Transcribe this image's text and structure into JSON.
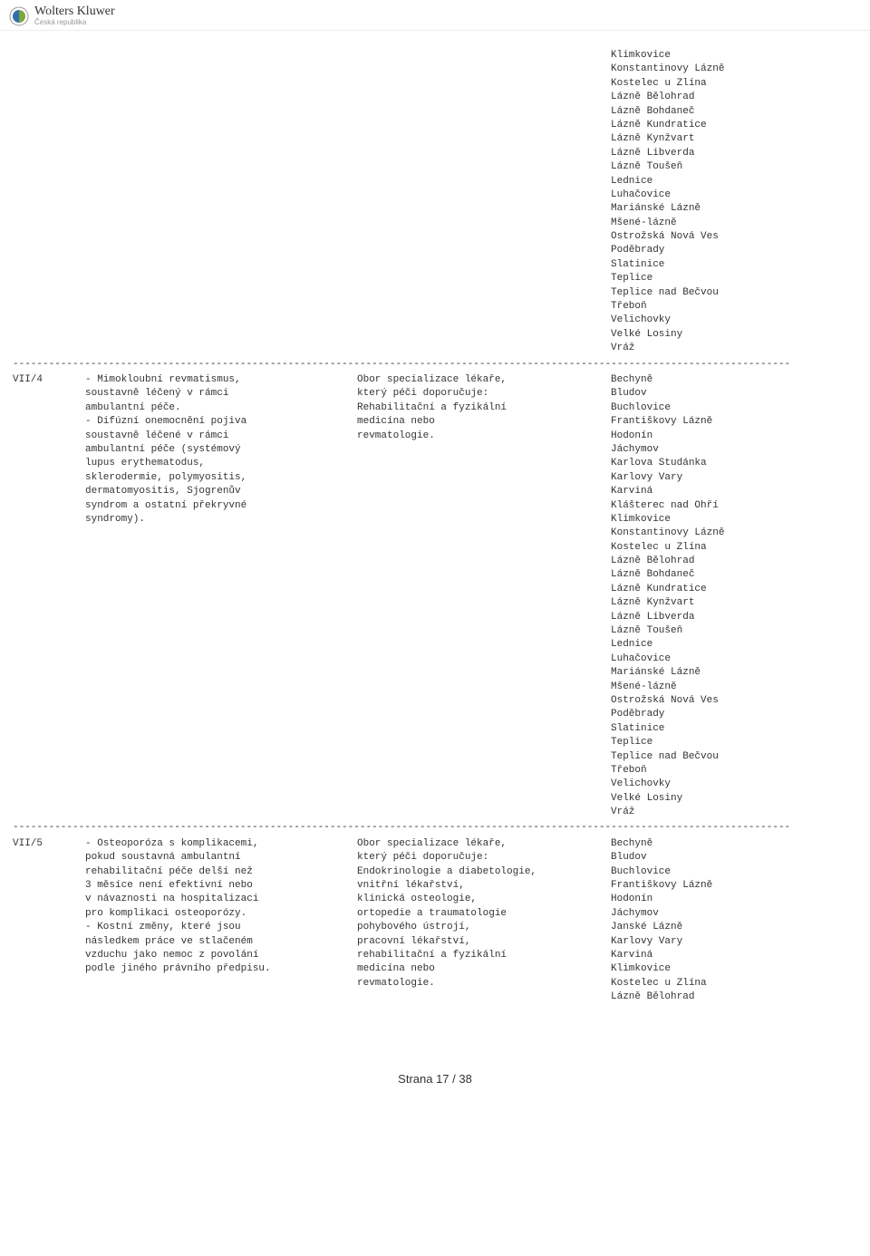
{
  "brand": {
    "main": "Wolters Kluwer",
    "sub": "Česká republika"
  },
  "top_places": [
    "Klimkovice",
    "Konstantinovy Lázně",
    "Kostelec u Zlína",
    "Lázně Bělohrad",
    "Lázně Bohdaneč",
    "Lázně Kundratice",
    "Lázně Kynžvart",
    "Lázně Libverda",
    "Lázně Toušeň",
    "Lednice",
    "Luhačovice",
    "Mariánské Lázně",
    "Mšené-lázně",
    "Ostrožská Nová Ves",
    "Poděbrady",
    "Slatinice",
    "Teplice",
    "Teplice nad Bečvou",
    "Třeboň",
    "Velichovky",
    "Velké Losiny",
    "Vráž"
  ],
  "divider": "----------------------------------------------------------------------------------------------------------------------------------",
  "sections": [
    {
      "code": "VII/4",
      "indication": [
        "- Mimokloubní revmatismus,",
        "soustavně léčený v rámci",
        "ambulantní péče.",
        "- Difúzní onemocnění pojiva",
        "soustavně léčené v rámci",
        "ambulantní péče (systémový",
        "lupus erythematodus,",
        "sklerodermie, polymyositis,",
        "dermatomyositis, Sjogrenův",
        "syndrom a ostatní překryvné",
        "syndromy)."
      ],
      "specialization": [
        "Obor specializace lékaře,",
        "který péči doporučuje:",
        "Rehabilitační a fyzikální",
        "medicína nebo",
        "revmatologie."
      ],
      "places": [
        "Bechyně",
        "Bludov",
        "Buchlovice",
        "Františkovy Lázně",
        "Hodonín",
        "Jáchymov",
        "Karlova Studánka",
        "Karlovy Vary",
        "Karviná",
        "Klášterec nad Ohří",
        "Klimkovice",
        "Konstantinovy Lázně",
        "Kostelec u Zlína",
        "Lázně Bělohrad",
        "Lázně Bohdaneč",
        "Lázně Kundratice",
        "Lázně Kynžvart",
        "Lázně Libverda",
        "Lázně Toušeň",
        "Lednice",
        "Luhačovice",
        "Mariánské Lázně",
        "Mšené-lázně",
        "Ostrožská Nová Ves",
        "Poděbrady",
        "Slatinice",
        "Teplice",
        "Teplice nad Bečvou",
        "Třeboň",
        "Velichovky",
        "Velké Losiny",
        "Vráž"
      ]
    },
    {
      "code": "VII/5",
      "indication": [
        "- Osteoporóza s komplikacemi,",
        "pokud soustavná ambulantní",
        "rehabilitační péče delší než",
        "3 měsíce není efektivní nebo",
        "v návaznosti na hospitalizaci",
        "pro komplikaci osteoporózy.",
        "- Kostní změny, které jsou",
        "následkem práce ve stlačeném",
        "vzduchu jako nemoc z povolání",
        "podle jiného právního předpisu."
      ],
      "specialization": [
        "Obor specializace lékaře,",
        "který péči doporučuje:",
        "Endokrinologie a diabetologie,",
        "vnitřní lékařství,",
        "klinická osteologie,",
        "ortopedie a traumatologie",
        "pohybového ústrojí,",
        "pracovní lékařství,",
        "rehabilitační a fyzikální",
        "medicína nebo",
        "revmatologie."
      ],
      "places": [
        "Bechyně",
        "Bludov",
        "Buchlovice",
        "Františkovy Lázně",
        "Hodonín",
        "Jáchymov",
        "Janské Lázně",
        "Karlovy Vary",
        "Karviná",
        "Klimkovice",
        "Kostelec u Zlína",
        "Lázně Bělohrad"
      ]
    }
  ],
  "footer": "Strana 17 / 38"
}
